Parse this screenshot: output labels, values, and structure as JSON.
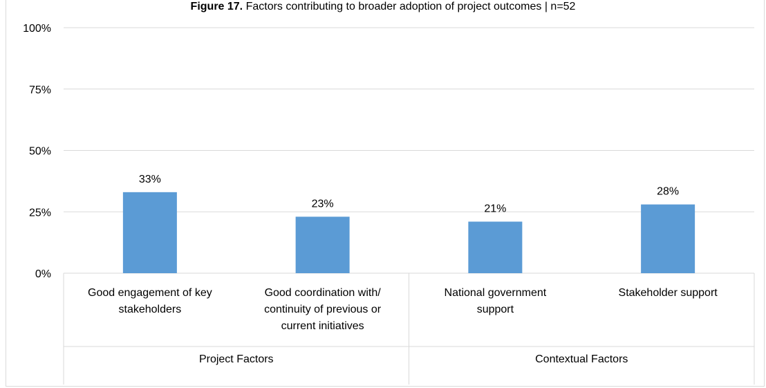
{
  "chart_data": {
    "type": "bar",
    "title_bold": "Figure 17.",
    "title_rest": " Factors contributing to broader adoption of project outcomes | n=52",
    "categories": [
      [
        "Good engagement of key",
        "stakeholders"
      ],
      [
        "Good coordination with/",
        "continuity of previous or",
        "current initiatives"
      ],
      [
        "National government",
        "support"
      ],
      [
        "Stakeholder support"
      ]
    ],
    "groups": [
      {
        "label": "Project Factors",
        "span": 2
      },
      {
        "label": "Contextual Factors",
        "span": 2
      }
    ],
    "values": [
      33,
      23,
      21,
      28
    ],
    "data_labels": [
      "33%",
      "23%",
      "21%",
      "28%"
    ],
    "yticks": [
      "0%",
      "25%",
      "50%",
      "75%",
      "100%"
    ],
    "ylim": [
      0,
      100
    ],
    "bar_color": "#5b9bd5",
    "grid_color": "#d9d9d9",
    "grid": true
  }
}
